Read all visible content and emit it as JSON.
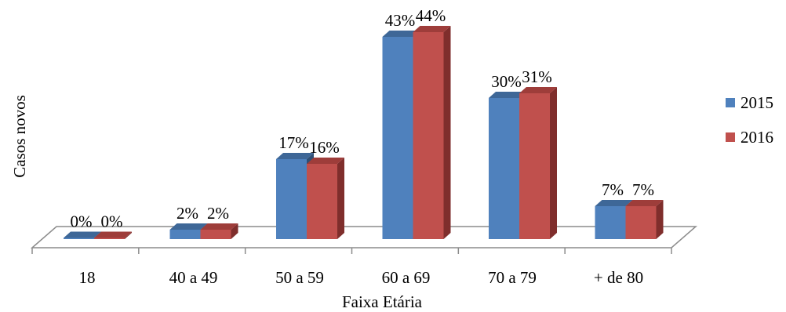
{
  "chart_data": {
    "type": "bar",
    "subtype": "3d-clustered-column",
    "categories": [
      "18",
      "40 a 49",
      "50 a 59",
      "60 a 69",
      "70 a 79",
      "+ de 80"
    ],
    "series": [
      {
        "name": "2015",
        "values": [
          0,
          2,
          17,
          43,
          30,
          7
        ],
        "labels": [
          "0%",
          "2%",
          "17%",
          "43%",
          "30%",
          "7%"
        ],
        "color": "#4F81BD",
        "top_color": "#3E6797",
        "side_color": "#2F4F75"
      },
      {
        "name": "2016",
        "values": [
          0,
          2,
          16,
          44,
          31,
          7
        ],
        "labels": [
          "0%",
          "2%",
          "16%",
          "44%",
          "31%",
          "7%"
        ],
        "color": "#C0504D",
        "top_color": "#9E3D3A",
        "side_color": "#7F2E2C"
      }
    ],
    "xlabel": "Faixa Etária",
    "ylabel": "Casos novos",
    "ylim": [
      0,
      44
    ],
    "grid": false,
    "legend_position": "right"
  }
}
